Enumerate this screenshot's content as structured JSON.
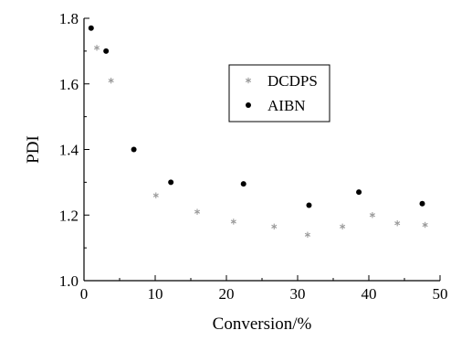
{
  "chart_data": {
    "type": "scatter",
    "xlabel": "Conversion/%",
    "ylabel": "PDI",
    "xlim": [
      0,
      50
    ],
    "ylim": [
      1.0,
      1.8
    ],
    "x_ticks": [
      "0",
      "10",
      "20",
      "30",
      "40",
      "50"
    ],
    "y_ticks": [
      "1.0",
      "1.2",
      "1.4",
      "1.6",
      "1.8"
    ],
    "legend_position": "upper-center-right",
    "series": [
      {
        "name": "DCDPS",
        "marker": "asterisk",
        "color": "#9a9a9a",
        "points": [
          [
            1.8,
            1.71
          ],
          [
            3.8,
            1.61
          ],
          [
            10.1,
            1.26
          ],
          [
            15.9,
            1.21
          ],
          [
            21.0,
            1.18
          ],
          [
            26.7,
            1.165
          ],
          [
            31.4,
            1.14
          ],
          [
            36.3,
            1.165
          ],
          [
            40.5,
            1.2
          ],
          [
            44.0,
            1.175
          ],
          [
            47.9,
            1.17
          ]
        ]
      },
      {
        "name": "AIBN",
        "marker": "dot",
        "color": "#000000",
        "points": [
          [
            1.0,
            1.77
          ],
          [
            3.1,
            1.7
          ],
          [
            7.0,
            1.4
          ],
          [
            12.2,
            1.3
          ],
          [
            22.4,
            1.295
          ],
          [
            31.6,
            1.23
          ],
          [
            38.6,
            1.27
          ],
          [
            47.5,
            1.235
          ]
        ]
      }
    ]
  }
}
